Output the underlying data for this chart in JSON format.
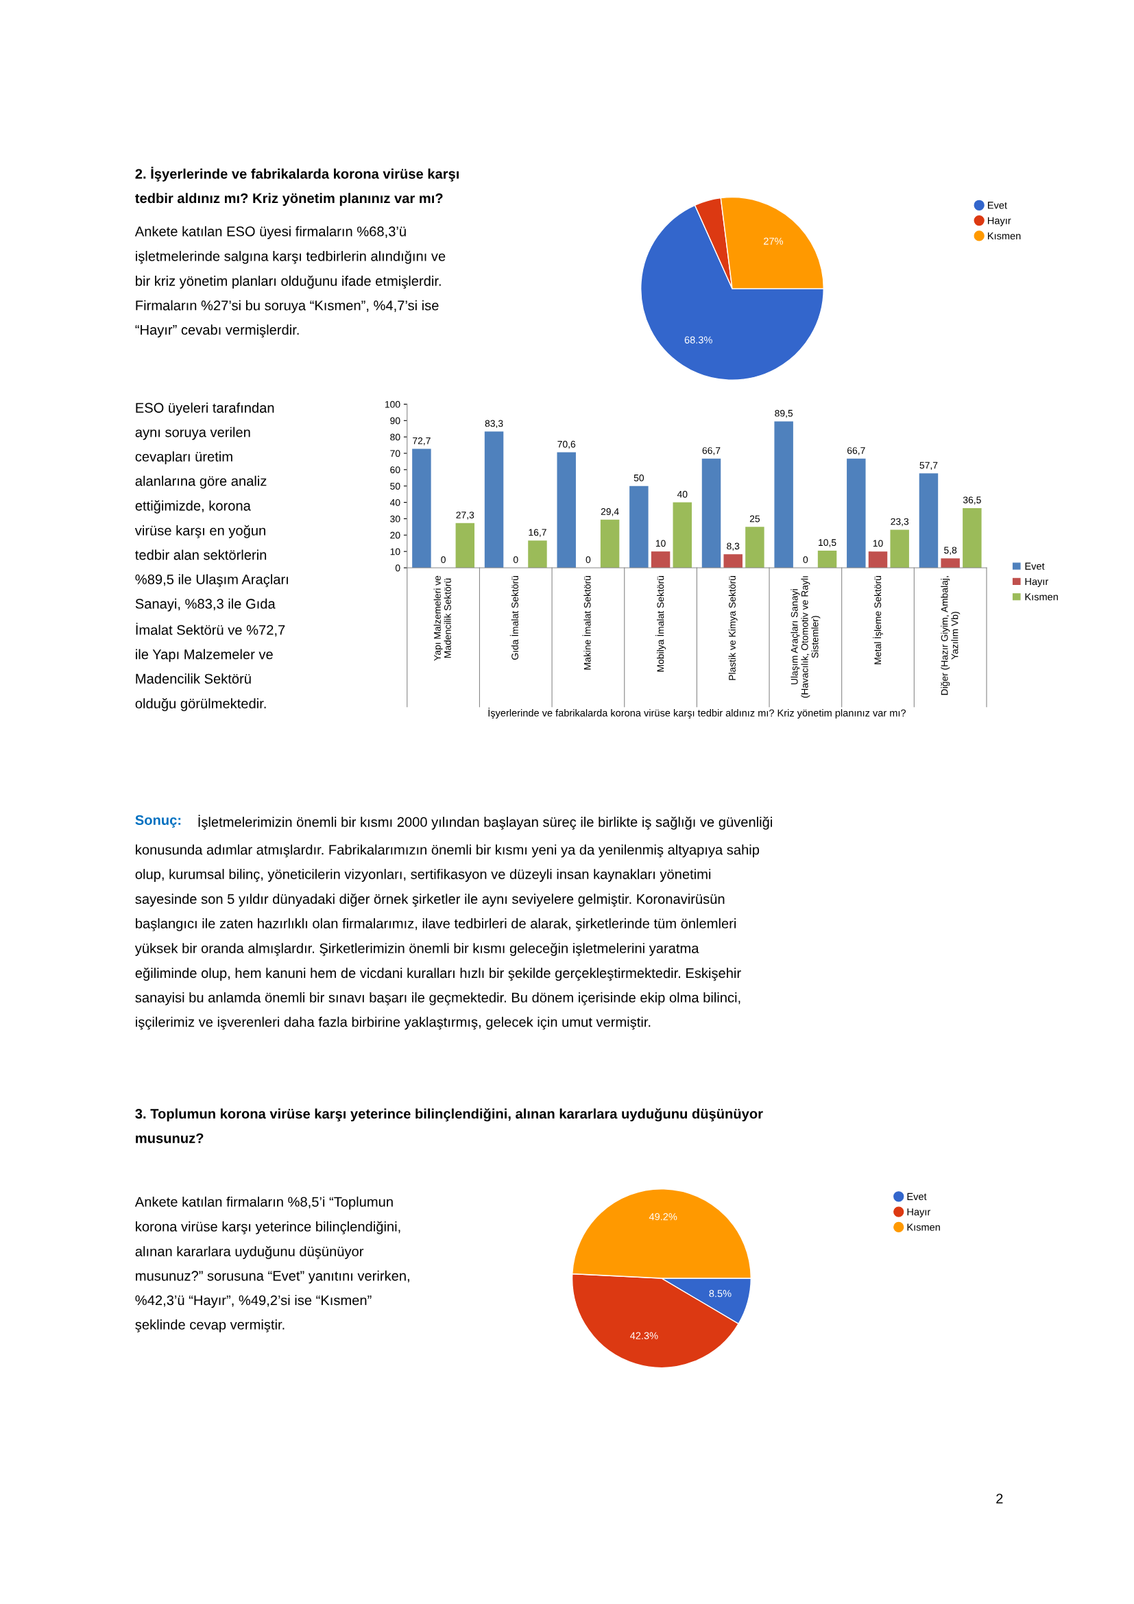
{
  "chart_data": [
    {
      "type": "pie",
      "categories": [
        "Evet",
        "Hayır",
        "Kısmen"
      ],
      "values": [
        68.3,
        4.7,
        27
      ],
      "colors": [
        "#3366cc",
        "#dc3912",
        "#ff9900"
      ],
      "value_labels": [
        "68.3%",
        null,
        "27%"
      ],
      "legend": "right",
      "annotations": [
        "2. İşyerlerinde ve fabrikalarda korona virüse karşı\ntedbir aldınız mı? Kriz yönetim planınız var mı?",
        "Ankete katılan ESO üyesi firmaların %68,3’ü\nişletmelerinde salgına karşı tedbirlerin alındığını ve\nbir kriz yönetim planları olduğunu ifade etmişlerdir.\nFirmaların %27’si bu soruya “Kısmen”, %4,7’si ise\n“Hayır” cevabı vermişlerdir."
      ]
    },
    {
      "type": "bar",
      "categories": [
        "Yapı Malzemeleri ve\nMadencilik Sektörü",
        "Gıda İmalat Sektörü",
        "Makine İmalat Sektörü",
        "Mobilya İmalat Sektörü",
        "Plastik ve Kimya Sektörü",
        "Ulaşım Araçları Sanayi\n(Havacılık, Otomotiv ve Raylı\nSistemler)",
        "Metal İşleme Sektörü",
        "Diğer (Hazır Giyim, Ambalaj,\nYazılım Vb)"
      ],
      "series": [
        {
          "name": "Evet",
          "color": "#4f81bd",
          "values": [
            72.7,
            83.3,
            70.6,
            50,
            66.7,
            89.5,
            66.7,
            57.7
          ],
          "value_labels": [
            "72,7",
            "83,3",
            "70,6",
            "50",
            "66,7",
            "89,5",
            "66,7",
            "57,7"
          ]
        },
        {
          "name": "Hayır",
          "color": "#c0504d",
          "values": [
            0,
            0,
            0,
            10,
            8.3,
            0,
            10,
            5.8
          ],
          "value_labels": [
            "0",
            "0",
            "0",
            "10",
            "8,3",
            "0",
            "10",
            "5,8"
          ]
        },
        {
          "name": "Kısmen",
          "color": "#9bbb59",
          "values": [
            27.3,
            16.7,
            29.4,
            40,
            25,
            10.5,
            23.3,
            36.5
          ],
          "value_labels": [
            "27,3",
            "16,7",
            "29,4",
            "40",
            "25",
            "10,5",
            "23,3",
            "36,5"
          ]
        }
      ],
      "xlabel": "İşyerlerinde ve fabrikalarda korona virüse karşı tedbir aldınız mı? Kriz yönetim planınız var mı?",
      "ylim": [
        0,
        100
      ],
      "yticks": [
        0,
        10,
        20,
        30,
        40,
        50,
        60,
        70,
        80,
        90,
        100
      ],
      "grid": false,
      "legend": "right",
      "annotations": [
        "ESO üyeleri tarafından\naynı soruya verilen\ncevapları üretim\nalanlarına göre analiz\nettiğimizde, korona\nvirüse karşı en yoğun\ntedbir alan sektörlerin\n%89,5 ile Ulaşım Araçları\nSanayi, %83,3 ile Gıda\nİmalat Sektörü ve %72,7\nile Yapı Malzemeler ve\nMadencilik Sektörü\nolduğu görülmektedir.",
        "Sonuç:",
        "İşletmelerimizin önemli bir kısmı 2000 yılından başlayan süreç ile birlikte iş sağlığı ve güvenliği",
        "konusunda adımlar atmışlardır. Fabrikalarımızın önemli bir kısmı yeni ya da yenilenmiş altyapıya sahip\nolup, kurumsal bilinç, yöneticilerin vizyonları, sertifikasyon ve düzeyli insan kaynakları yönetimi\nsayesinde son 5 yıldır dünyadaki diğer örnek şirketler ile aynı seviyelere gelmiştir. Koronavirüsün\nbaşlangıcı ile zaten hazırlıklı olan firmalarımız, ilave tedbirleri de alarak, şirketlerinde tüm önlemleri\nyüksek bir oranda almışlardır. Şirketlerimizin önemli bir kısmı geleceğin işletmelerini yaratma\neğiliminde olup, hem kanuni hem de vicdani kuralları hızlı bir şekilde gerçekleştirmektedir. Eskişehir\nsanayisi bu anlamda önemli bir sınavı başarı ile geçmektedir. Bu dönem içerisinde ekip olma bilinci,\nişçilerimiz ve işverenleri daha fazla birbirine yaklaştırmış, gelecek için umut vermiştir."
      ]
    },
    {
      "type": "pie",
      "categories": [
        "Evet",
        "Hayır",
        "Kısmen"
      ],
      "values": [
        8.5,
        42.3,
        49.2
      ],
      "colors": [
        "#3366cc",
        "#dc3912",
        "#ff9900"
      ],
      "value_labels": [
        "8.5%",
        "42.3%",
        "49.2%"
      ],
      "legend": "right",
      "annotations": [
        "3. Toplumun korona virüse karşı yeterince bilinçlendiğini, alınan kararlara uyduğunu düşünüyor\nmusunuz?",
        "Ankete katılan firmaların %8,5’i “Toplumun\nkorona virüse karşı yeterince bilinçlendiğini,\nalınan kararlara uyduğunu düşünüyor\nmusunuz?” sorusuna “Evet” yanıtını verirken,\n%42,3’ü “Hayır”, %49,2’si ise “Kısmen”\nşeklinde cevap vermiştir.",
        "2"
      ]
    }
  ]
}
